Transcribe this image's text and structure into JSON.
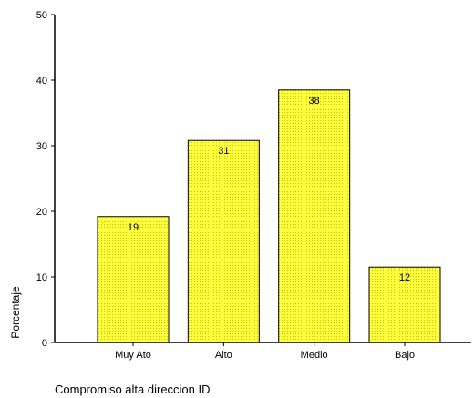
{
  "chart_data": {
    "type": "bar",
    "categories": [
      "Muy Ato",
      "Alto",
      "Medio",
      "Bajo"
    ],
    "values": [
      19.2,
      30.8,
      38.5,
      11.5
    ],
    "data_labels": [
      "19",
      "31",
      "38",
      "12"
    ],
    "title": "",
    "xlabel": "Compromiso alta direccion ID",
    "ylabel": "Porcentaje",
    "ylim": [
      0,
      50
    ],
    "yticks": [
      0,
      10,
      20,
      30,
      40,
      50
    ],
    "grid": false,
    "bar_color": "#ffff40",
    "bar_pattern_color": "#c8c800"
  }
}
